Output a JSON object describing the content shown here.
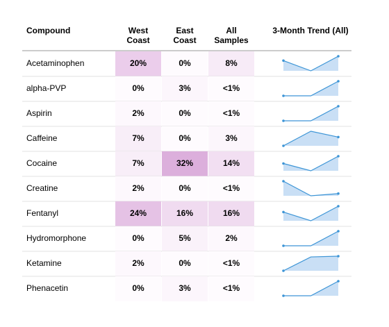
{
  "table": {
    "header": [
      {
        "lines": [
          "Compound"
        ]
      },
      {
        "lines": [
          "West",
          "Coast"
        ]
      },
      {
        "lines": [
          "East",
          "Coast"
        ]
      },
      {
        "lines": [
          "All",
          "Samples"
        ]
      },
      {
        "lines": [
          "3-Month Trend (All)"
        ]
      }
    ],
    "rows": [
      {
        "name": "Acetaminophen",
        "cells": [
          {
            "text": "20%",
            "color": "#ebcdeb"
          },
          {
            "text": "0%",
            "color": "#fefbfe"
          },
          {
            "text": "8%",
            "color": "#f7ebf7"
          }
        ],
        "trend": [
          0.7,
          0,
          1
        ]
      },
      {
        "name": "alpha-PVP",
        "cells": [
          {
            "text": "0%",
            "color": "#fefbfe"
          },
          {
            "text": "3%",
            "color": "#fcf6fc"
          },
          {
            "text": "<1%",
            "color": "#fefbfe"
          }
        ],
        "trend": [
          0,
          0,
          1
        ]
      },
      {
        "name": "Aspirin",
        "cells": [
          {
            "text": "2%",
            "color": "#fdf8fd"
          },
          {
            "text": "0%",
            "color": "#fefbfe"
          },
          {
            "text": "<1%",
            "color": "#fefbfe"
          }
        ],
        "trend": [
          0,
          0,
          1
        ]
      },
      {
        "name": "Caffeine",
        "cells": [
          {
            "text": "7%",
            "color": "#f8eef8"
          },
          {
            "text": "0%",
            "color": "#fefbfe"
          },
          {
            "text": "3%",
            "color": "#fcf6fc"
          }
        ],
        "trend": [
          0,
          1,
          0.6
        ]
      },
      {
        "name": "Cocaine",
        "cells": [
          {
            "text": "7%",
            "color": "#f8eef8"
          },
          {
            "text": "32%",
            "color": "#dcafdc"
          },
          {
            "text": "14%",
            "color": "#f2dff2"
          }
        ],
        "trend": [
          0.5,
          0,
          1
        ]
      },
      {
        "name": "Creatine",
        "cells": [
          {
            "text": "2%",
            "color": "#fdf8fd"
          },
          {
            "text": "0%",
            "color": "#fefbfe"
          },
          {
            "text": "<1%",
            "color": "#fefbfe"
          }
        ],
        "trend": [
          1,
          0,
          0.15
        ]
      },
      {
        "name": "Fentanyl",
        "cells": [
          {
            "text": "24%",
            "color": "#e5c2e5"
          },
          {
            "text": "16%",
            "color": "#f0dbf0"
          },
          {
            "text": "16%",
            "color": "#f0dbf0"
          }
        ],
        "trend": [
          0.6,
          0,
          1
        ]
      },
      {
        "name": "Hydromorphone",
        "cells": [
          {
            "text": "0%",
            "color": "#fefbfe"
          },
          {
            "text": "5%",
            "color": "#faf2fa"
          },
          {
            "text": "2%",
            "color": "#fdf8fd"
          }
        ],
        "trend": [
          0,
          0,
          1
        ]
      },
      {
        "name": "Ketamine",
        "cells": [
          {
            "text": "2%",
            "color": "#fdf8fd"
          },
          {
            "text": "0%",
            "color": "#fefbfe"
          },
          {
            "text": "<1%",
            "color": "#fefbfe"
          }
        ],
        "trend": [
          0,
          0.95,
          1
        ]
      },
      {
        "name": "Phenacetin",
        "cells": [
          {
            "text": "0%",
            "color": "#fefbfe"
          },
          {
            "text": "3%",
            "color": "#fcf6fc"
          },
          {
            "text": "<1%",
            "color": "#fefbfe"
          }
        ],
        "trend": [
          0,
          0,
          1
        ]
      }
    ]
  }
}
